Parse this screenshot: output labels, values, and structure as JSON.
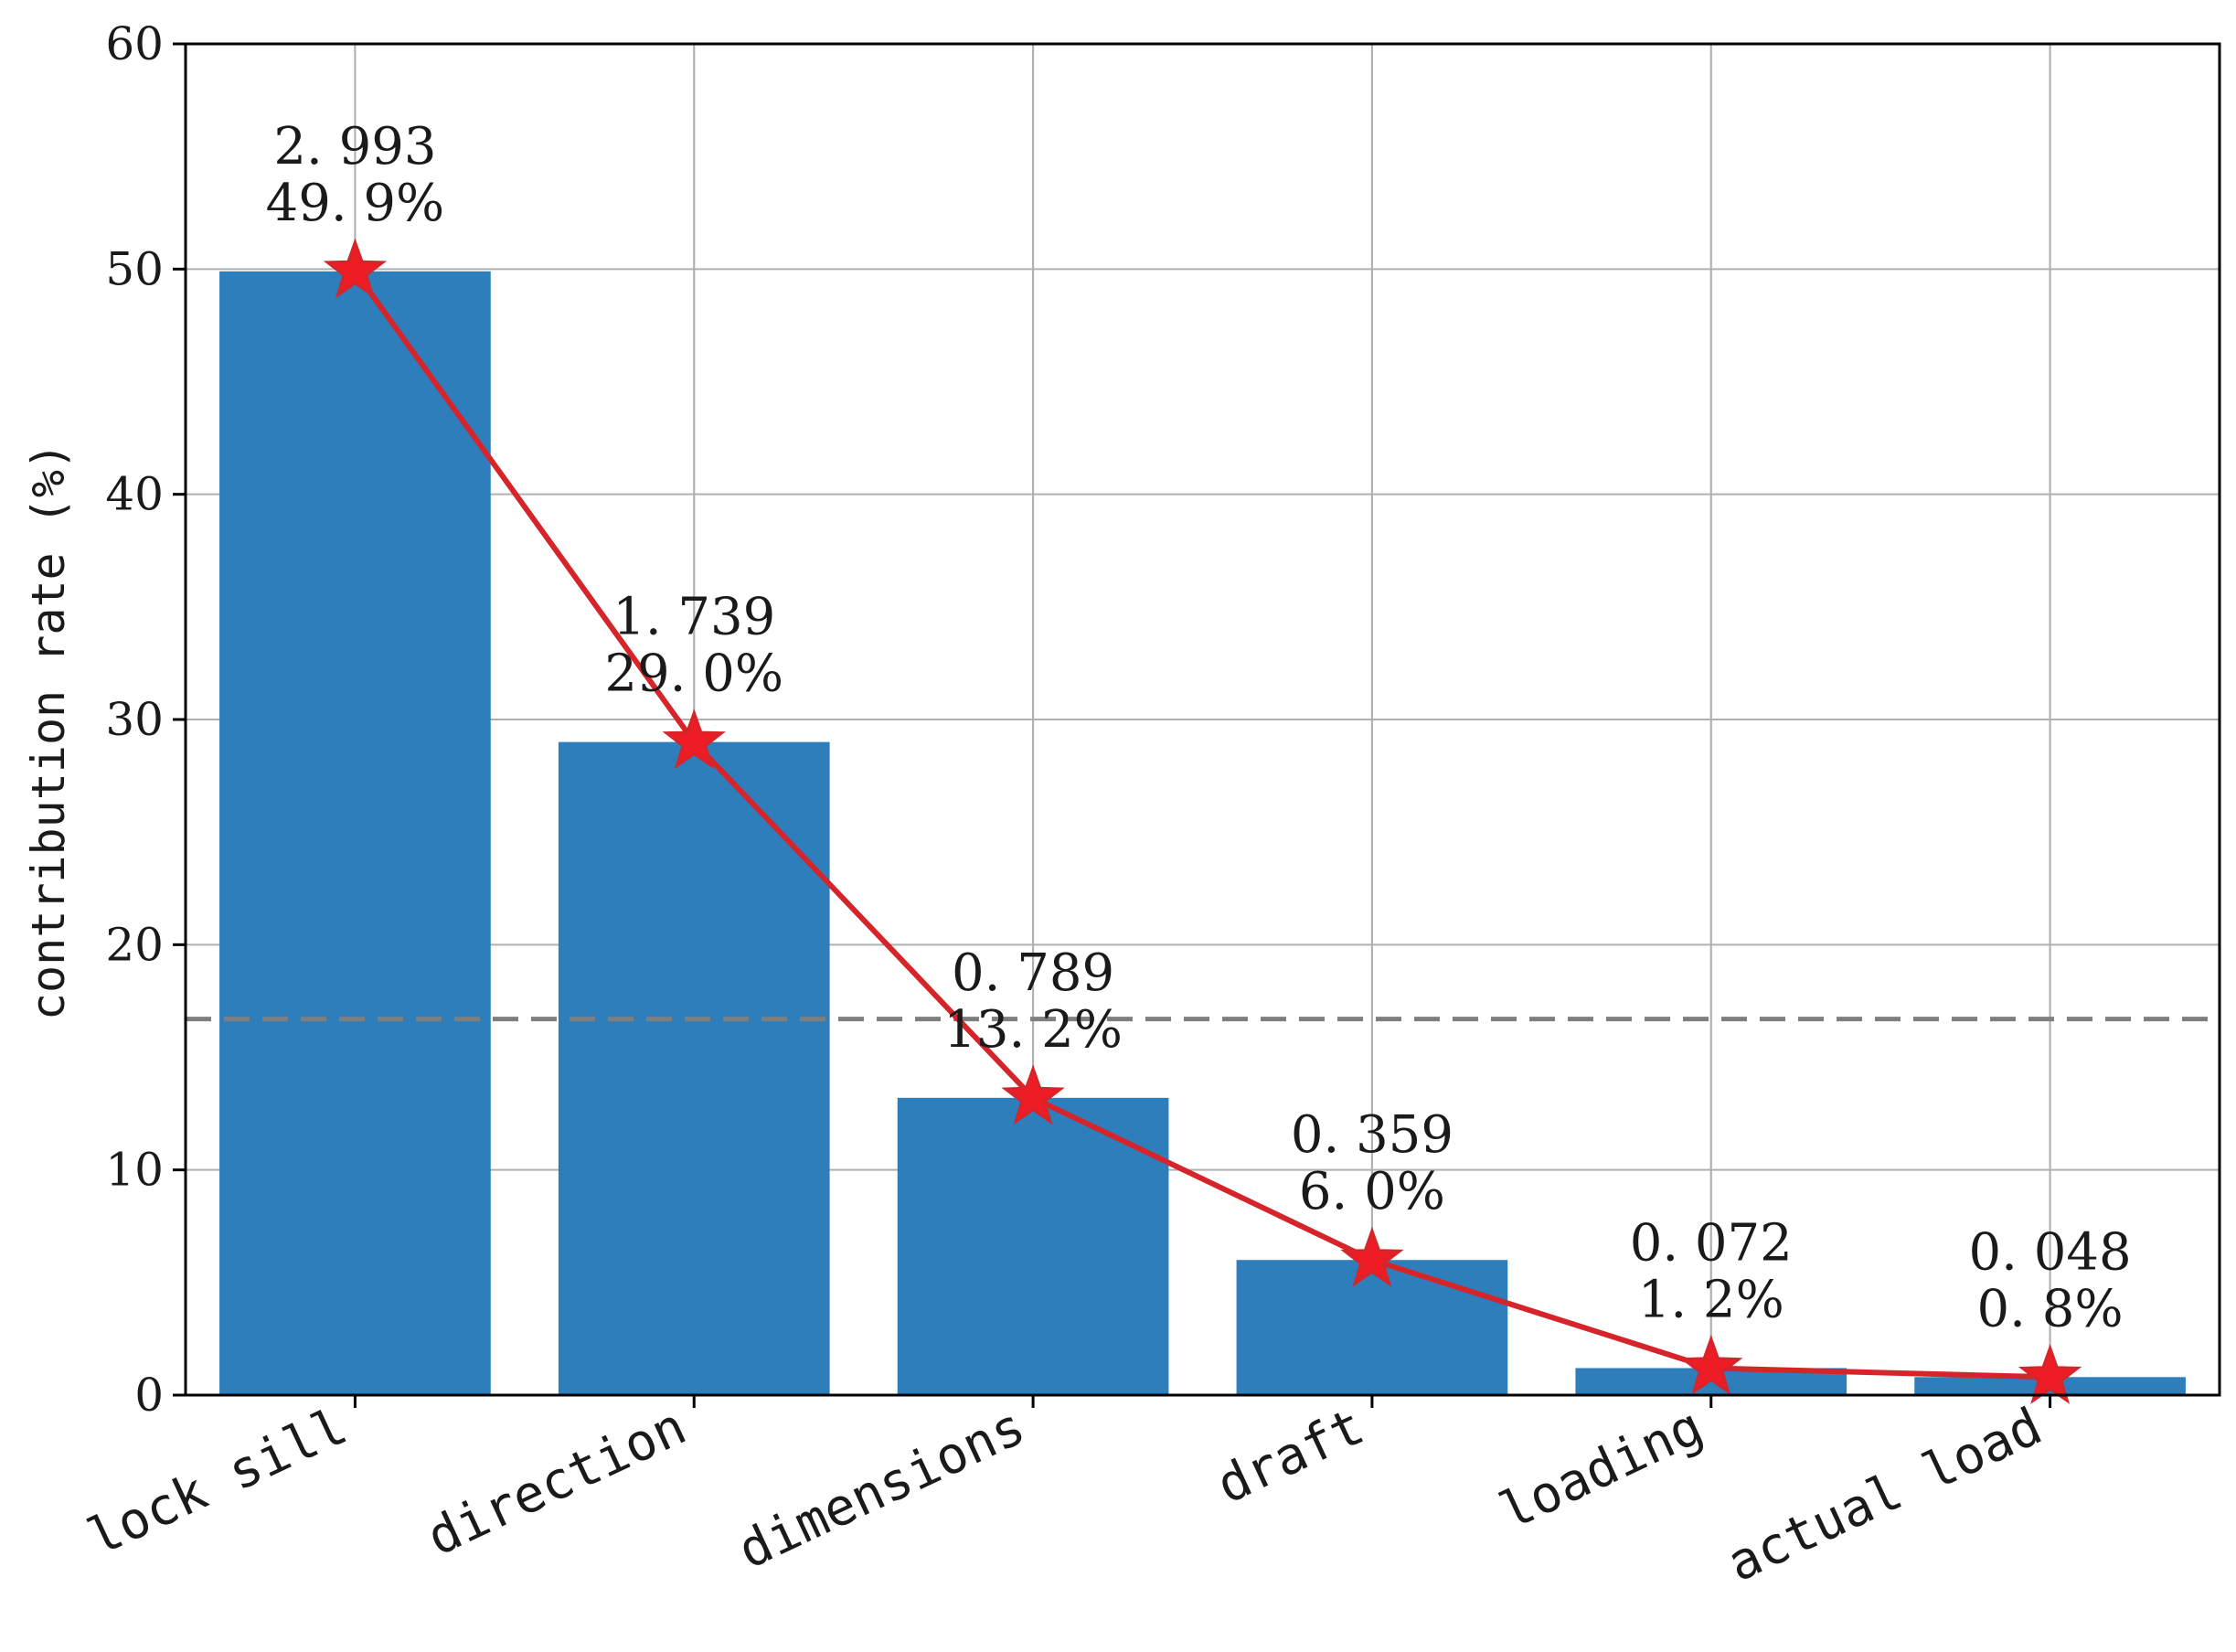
{
  "chart_data": {
    "type": "bar",
    "categories": [
      "lock sill",
      "direction",
      "dimensions",
      "draft",
      "loading",
      "actual load"
    ],
    "values": [
      49.9,
      29.0,
      13.2,
      6.0,
      1.2,
      0.8
    ],
    "scores": [
      "2. 993",
      "1. 739",
      "0. 789",
      "0. 359",
      "0. 072",
      "0. 048"
    ],
    "percent_labels": [
      "49. 9%",
      "29. 0%",
      "13. 2%",
      "6. 0%",
      "1. 2%",
      "0. 8%"
    ],
    "line_values": [
      49.9,
      29.0,
      13.2,
      6.0,
      1.2,
      0.8
    ],
    "reference_line": 16.7,
    "ylabel": "contribution rate (%)",
    "xlabel": "",
    "title": "",
    "ylim": [
      0,
      60
    ],
    "yticks": [
      0,
      10,
      20,
      30,
      40,
      50,
      60
    ],
    "grid": true,
    "colors": {
      "bar": "#2e7ebc",
      "line": "#d6242b",
      "marker": "#ee1c24",
      "reference": "#7f7f7f",
      "grid": "#b0b0b0",
      "axis": "#000000"
    }
  }
}
